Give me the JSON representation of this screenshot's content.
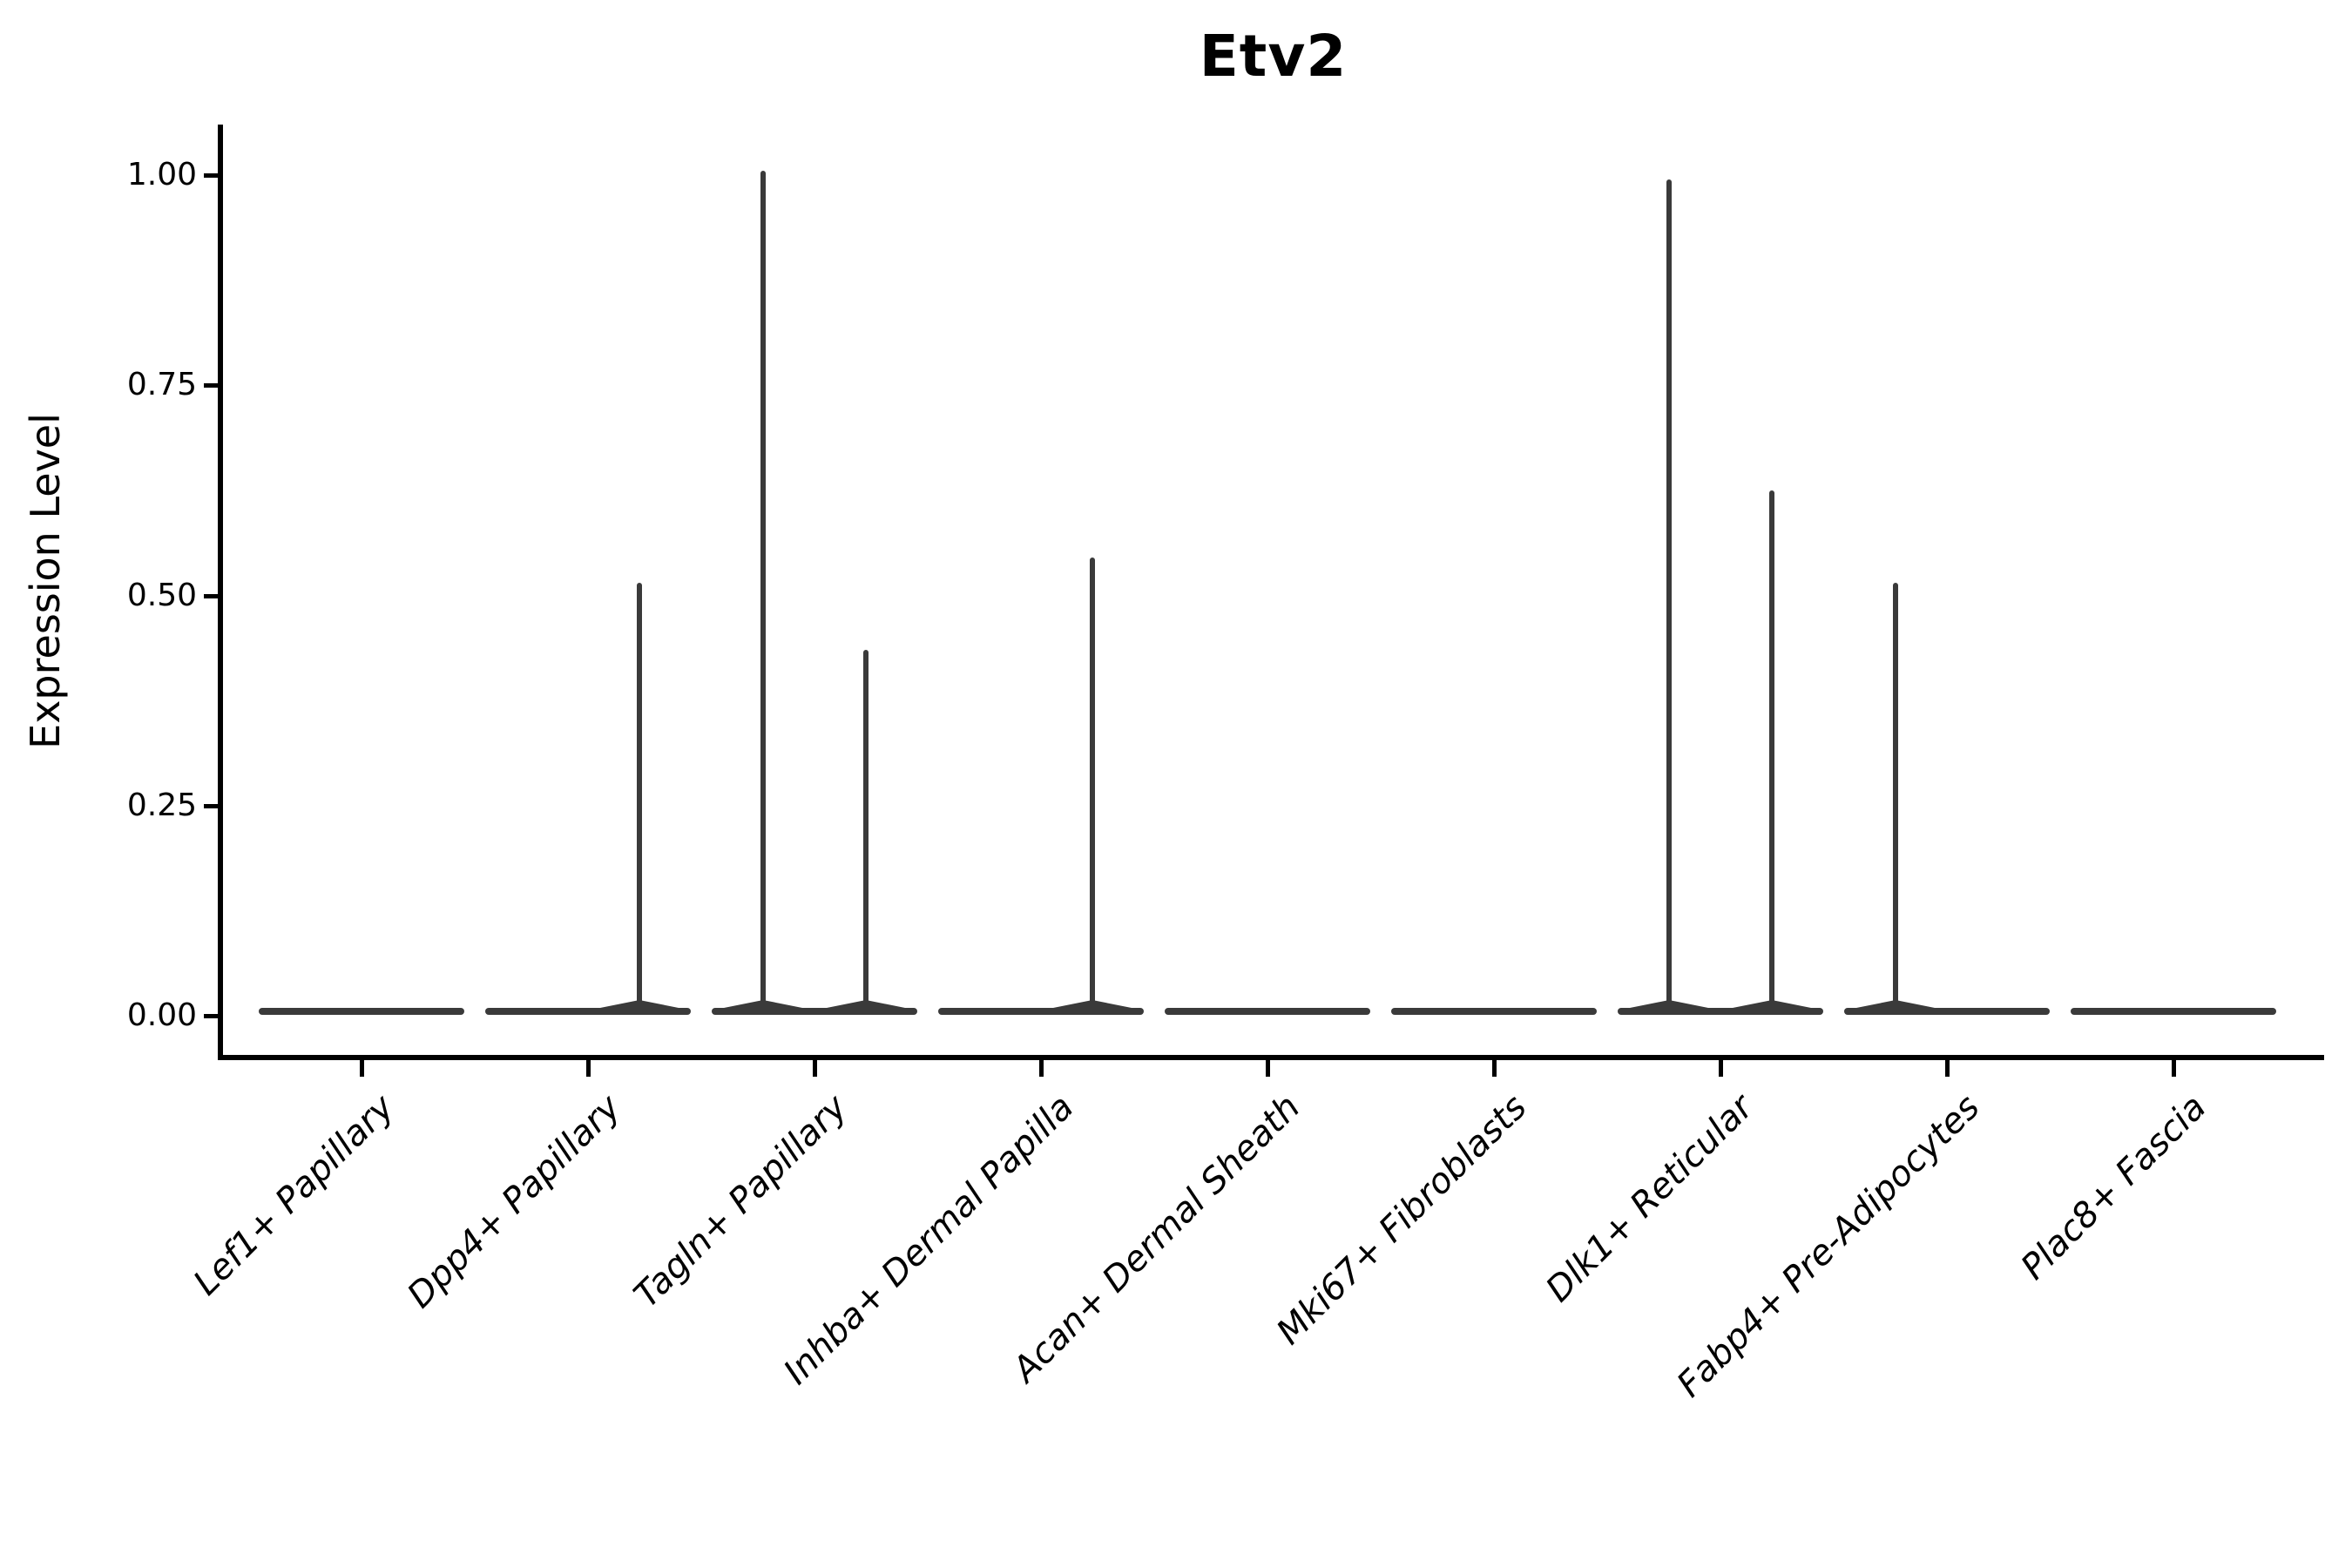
{
  "chart_data": {
    "type": "violin",
    "title": "Etv2",
    "xlabel": "",
    "ylabel": "Expression Level",
    "y_ticks": [
      {
        "label": "1.00",
        "value": 1.0
      },
      {
        "label": "0.75",
        "value": 0.75
      },
      {
        "label": "0.50",
        "value": 0.5
      },
      {
        "label": "0.25",
        "value": 0.25
      },
      {
        "label": "0.00",
        "value": 0.0
      }
    ],
    "ylim": [
      -0.05,
      1.05
    ],
    "grid": false,
    "legend": null,
    "x_tick_angle": 45,
    "colors": {
      "violin": "#3a3a3a",
      "axis": "#000000",
      "text": "#000000"
    },
    "categories": [
      "Lef1+ Papillary",
      "Dpp4+ Papillary",
      "Tagln+ Papillary",
      "Inhba+ Dermal Papilla",
      "Acan+ Dermal Sheath",
      "Mki67+ Fibroblasts",
      "Dlk1+ Reticular",
      "Fabp4+ Pre-Adipocytes",
      "Plac8+ Fascia"
    ],
    "violins": [
      {
        "category": "Lef1+ Papillary",
        "baseline": 0.0,
        "spikes": []
      },
      {
        "category": "Dpp4+ Papillary",
        "baseline": 0.0,
        "spikes": [
          {
            "offset": "right",
            "max": 0.51
          }
        ]
      },
      {
        "category": "Tagln+ Papillary",
        "baseline": 0.0,
        "spikes": [
          {
            "offset": "left",
            "max": 1.0
          },
          {
            "offset": "right",
            "max": 0.43
          }
        ]
      },
      {
        "category": "Inhba+ Dermal Papilla",
        "baseline": 0.0,
        "spikes": [
          {
            "offset": "right",
            "max": 0.54
          }
        ]
      },
      {
        "category": "Acan+ Dermal Sheath",
        "baseline": 0.0,
        "spikes": []
      },
      {
        "category": "Mki67+ Fibroblasts",
        "baseline": 0.0,
        "spikes": []
      },
      {
        "category": "Dlk1+ Reticular",
        "baseline": 0.0,
        "spikes": [
          {
            "offset": "left",
            "max": 0.99
          },
          {
            "offset": "right",
            "max": 0.62
          }
        ]
      },
      {
        "category": "Fabp4+ Pre-Adipocytes",
        "baseline": 0.0,
        "spikes": [
          {
            "offset": "left",
            "max": 0.51
          }
        ]
      },
      {
        "category": "Plac8+ Fascia",
        "baseline": 0.0,
        "spikes": []
      }
    ]
  }
}
